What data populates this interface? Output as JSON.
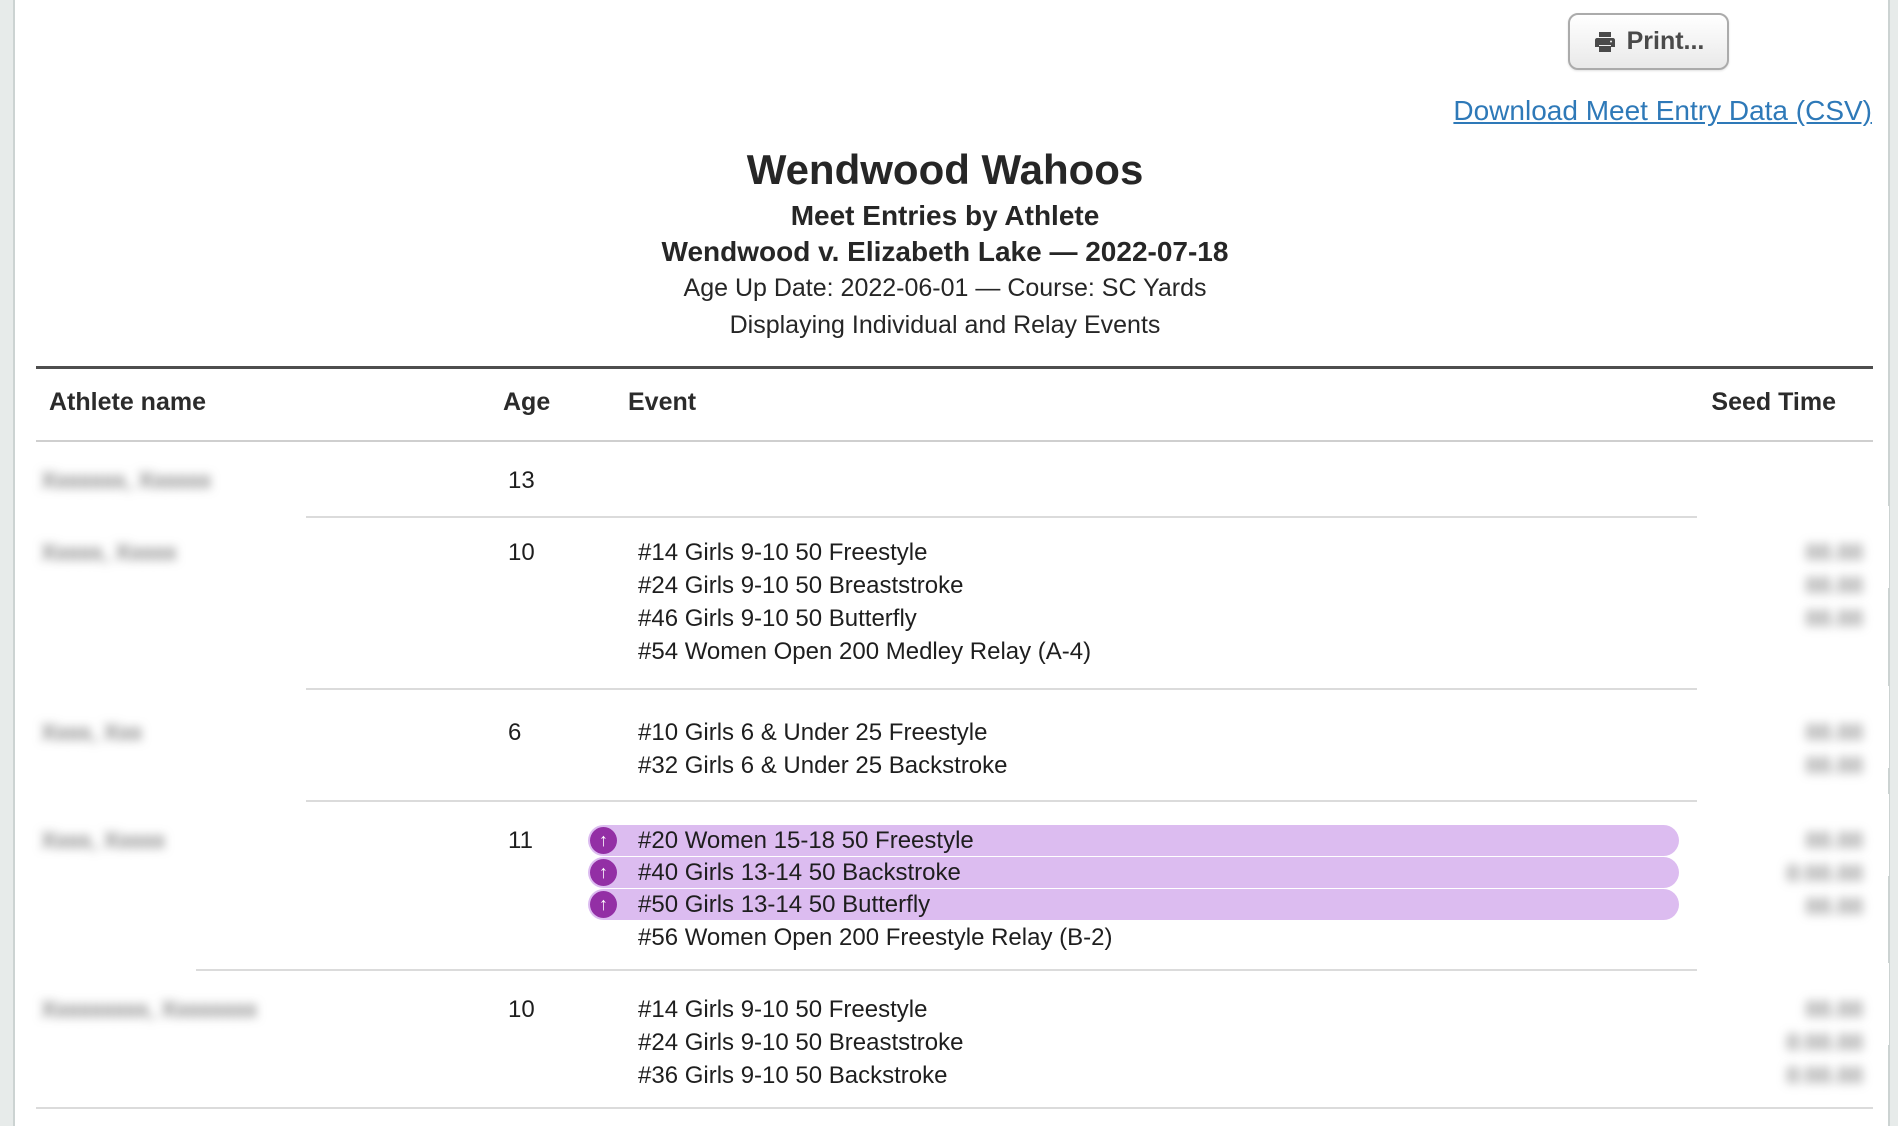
{
  "toolbar": {
    "print_label": "Print...",
    "download_link": "Download Meet Entry Data (CSV)"
  },
  "heading": {
    "team": "Wendwood Wahoos",
    "report": "Meet Entries by Athlete",
    "meet": "Wendwood v. Elizabeth Lake — 2022-07-18",
    "info1": "Age Up Date: 2022-06-01 — Course: SC Yards",
    "info2": "Displaying Individual and Relay Events"
  },
  "table": {
    "columns": {
      "name": "Athlete name",
      "age": "Age",
      "event": "Event",
      "seed": "Seed Time"
    },
    "rows": [
      {
        "name_redacted": "Xxxxxxx, Xxxxxx",
        "age": "13",
        "events": [],
        "seed_times_redacted": []
      },
      {
        "name_redacted": "Xxxxx, Xxxxx",
        "age": "10",
        "events": [
          {
            "label": "#14 Girls 9-10 50 Freestyle",
            "highlighted": false
          },
          {
            "label": "#24 Girls 9-10 50 Breaststroke",
            "highlighted": false
          },
          {
            "label": "#46 Girls 9-10 50 Butterfly",
            "highlighted": false
          },
          {
            "label": "#54 Women Open 200 Medley Relay (A-4)",
            "highlighted": false
          }
        ],
        "seed_times_redacted": [
          "88.88",
          "88.88",
          "88.88"
        ]
      },
      {
        "name_redacted": "Xxxx, Xxx",
        "age": "6",
        "events": [
          {
            "label": "#10 Girls 6 & Under 25 Freestyle",
            "highlighted": false
          },
          {
            "label": "#32 Girls 6 & Under 25 Backstroke",
            "highlighted": false
          }
        ],
        "seed_times_redacted": [
          "88.88",
          "88.88"
        ]
      },
      {
        "name_redacted": "Xxxx, Xxxxx",
        "age": "11",
        "events": [
          {
            "label": "#20 Women 15-18 50 Freestyle",
            "highlighted": true
          },
          {
            "label": "#40 Girls 13-14 50 Backstroke",
            "highlighted": true
          },
          {
            "label": "#50 Girls 13-14 50 Butterfly",
            "highlighted": true
          },
          {
            "label": "#56 Women Open 200 Freestyle Relay (B-2)",
            "highlighted": false
          }
        ],
        "seed_times_redacted": [
          "88.88",
          "8:88.88",
          "88.88"
        ]
      },
      {
        "name_redacted": "Xxxxxxxxx, Xxxxxxxx",
        "age": "10",
        "events": [
          {
            "label": "#14 Girls 9-10 50 Freestyle",
            "highlighted": false
          },
          {
            "label": "#24 Girls 9-10 50 Breaststroke",
            "highlighted": false
          },
          {
            "label": "#36 Girls 9-10 50 Backstroke",
            "highlighted": false
          }
        ],
        "seed_times_redacted": [
          "88.88",
          "8:88.88",
          "8:88.88"
        ]
      }
    ]
  },
  "icons": {
    "up_arrow": "↑",
    "printer": "printer-icon"
  },
  "colors": {
    "highlight_bg": "#dcbcf0",
    "highlight_icon": "#932fa5",
    "link_blue": "#2e79b8"
  }
}
